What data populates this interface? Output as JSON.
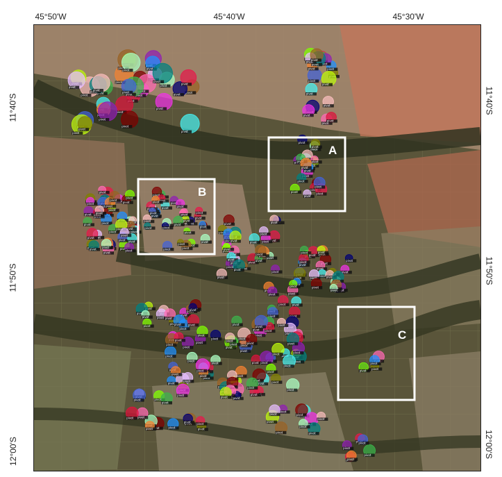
{
  "axes": {
    "top_ticks": [
      "45°50'W",
      "45°40'W",
      "45°30'W"
    ],
    "left_ticks": [
      "11°40'S",
      "11°50'S",
      "12°00'S"
    ],
    "right_ticks": [
      "11°40'S",
      "11°50'S",
      "12°00'S"
    ]
  },
  "insets": [
    {
      "id": "A",
      "label": "A"
    },
    {
      "id": "B",
      "label": "B"
    },
    {
      "id": "C",
      "label": "C"
    }
  ],
  "detection_label": "pivot",
  "colors": {
    "box_outline": "#ffffff",
    "background_dark": "#3d3f2a",
    "field_tan": "#b79a7a",
    "field_red": "#c8745a"
  }
}
